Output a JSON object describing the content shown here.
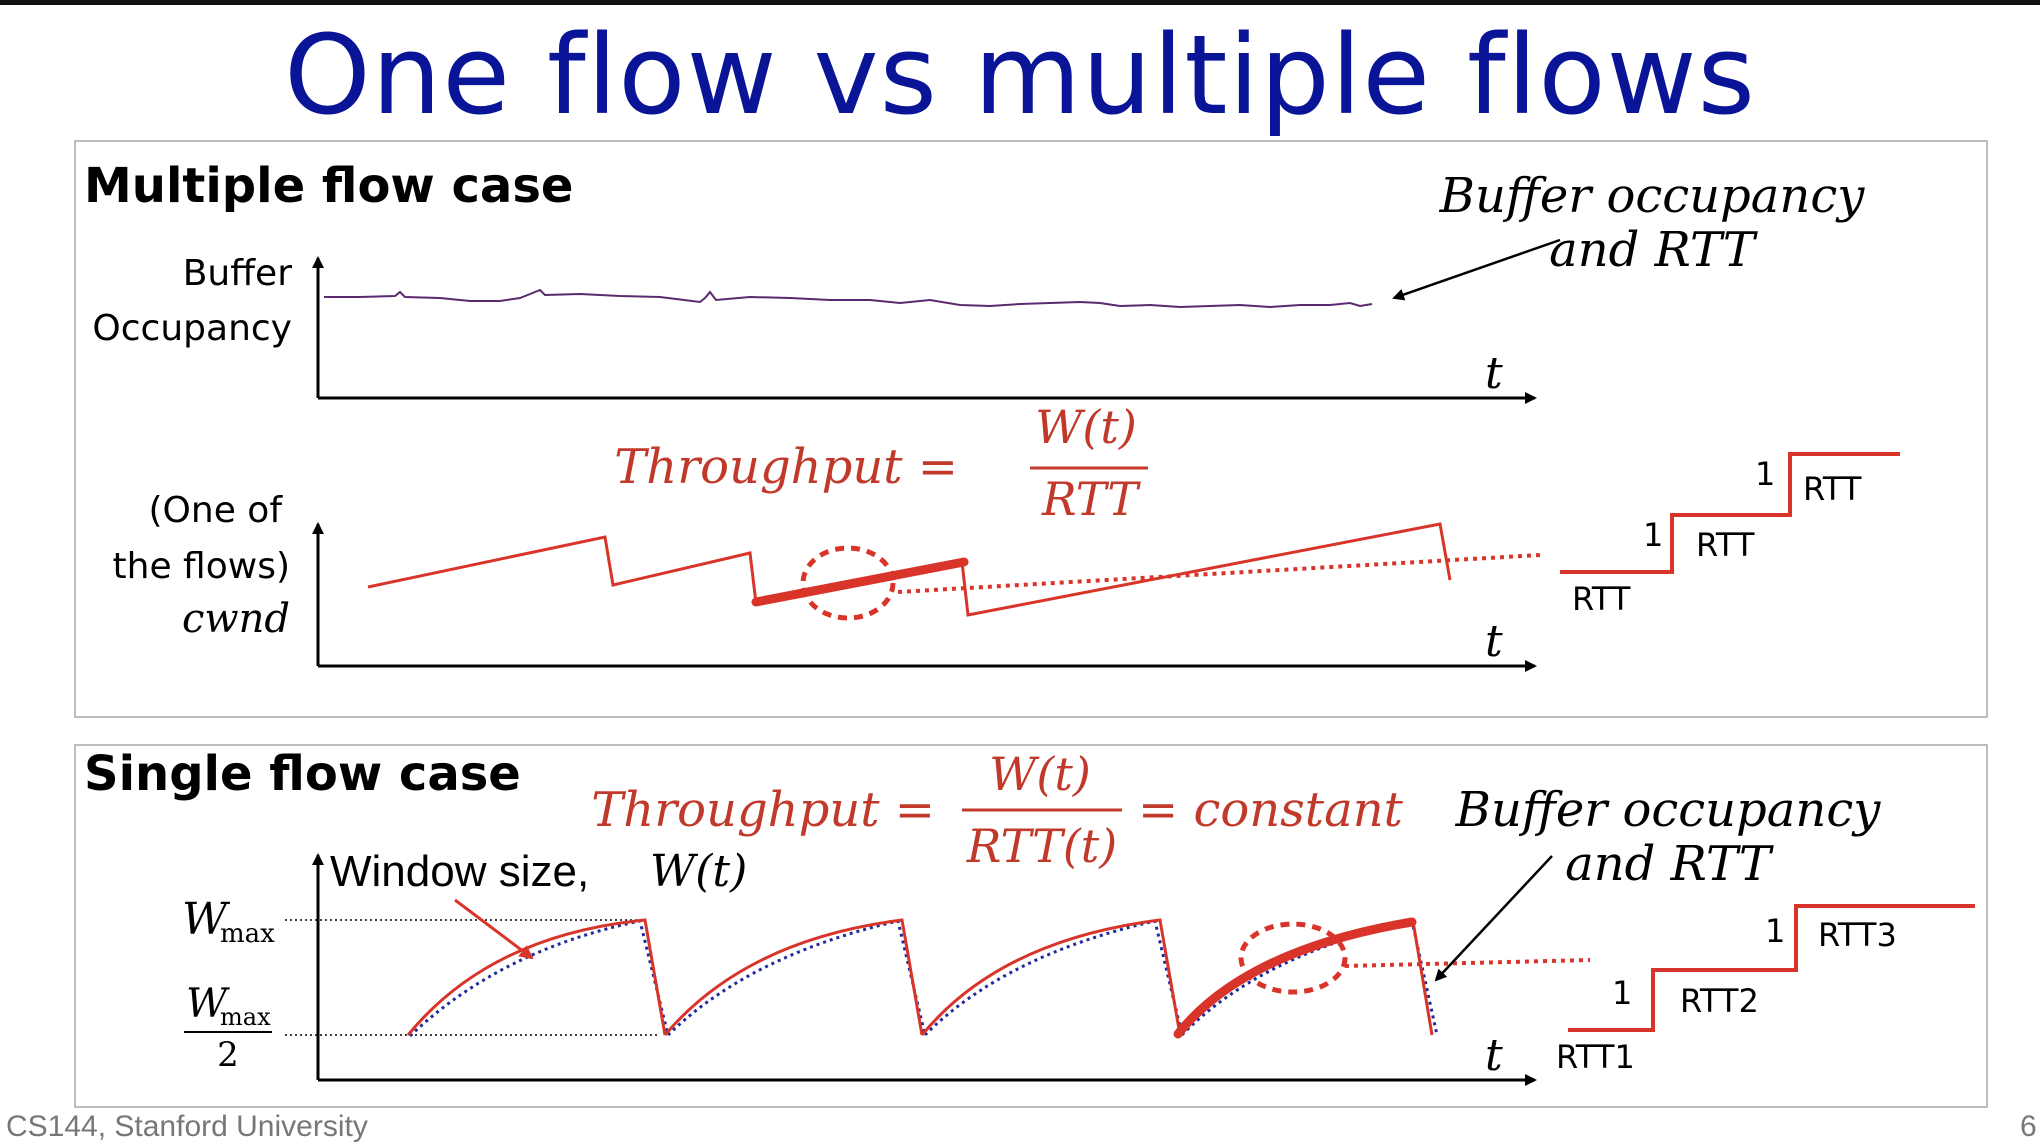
{
  "title": "One flow vs multiple flows",
  "footer": "CS144, Stanford University",
  "page_number": "6",
  "multiple": {
    "heading": "Multiple flow case",
    "buffer_label_1": "Buffer",
    "buffer_label_2": "Occupancy",
    "cwnd_label_1": "(One of",
    "cwnd_label_2": "the flows)",
    "cwnd_label_3": "cwnd",
    "axis_t": "t",
    "annotation_1": "Buffer occupancy",
    "annotation_2": "and RTT",
    "formula_lhs": "Throughput =",
    "formula_num": "W(t)",
    "formula_den": "RTT",
    "stairs": {
      "step_1": "1",
      "step_2": "1",
      "rtt_1": "RTT",
      "rtt_2": "RTT",
      "rtt_3": "RTT"
    }
  },
  "single": {
    "heading": "Single flow case",
    "window_label": "Window size,",
    "window_var": "W(t)",
    "wmax": "W",
    "wmax_sub": "max",
    "wmax_half_num": "W",
    "wmax_half_sub": "max",
    "wmax_half_den": "2",
    "axis_t": "t",
    "formula_lhs": "Throughput =",
    "formula_num": "W(t)",
    "formula_den": "RTT(t)",
    "formula_rhs": "= constant",
    "annotation_1": "Buffer occupancy",
    "annotation_2": "and RTT",
    "stairs": {
      "step_1": "1",
      "step_2": "1",
      "rtt_1": "RTT1",
      "rtt_2": "RTT2",
      "rtt_3": "RTT3"
    }
  },
  "colors": {
    "title": "#0a1497",
    "red": "#d9342a",
    "formula_red": "#c0392b",
    "purple": "#5b2a6e",
    "blue_dotted": "#1f2a9e"
  }
}
